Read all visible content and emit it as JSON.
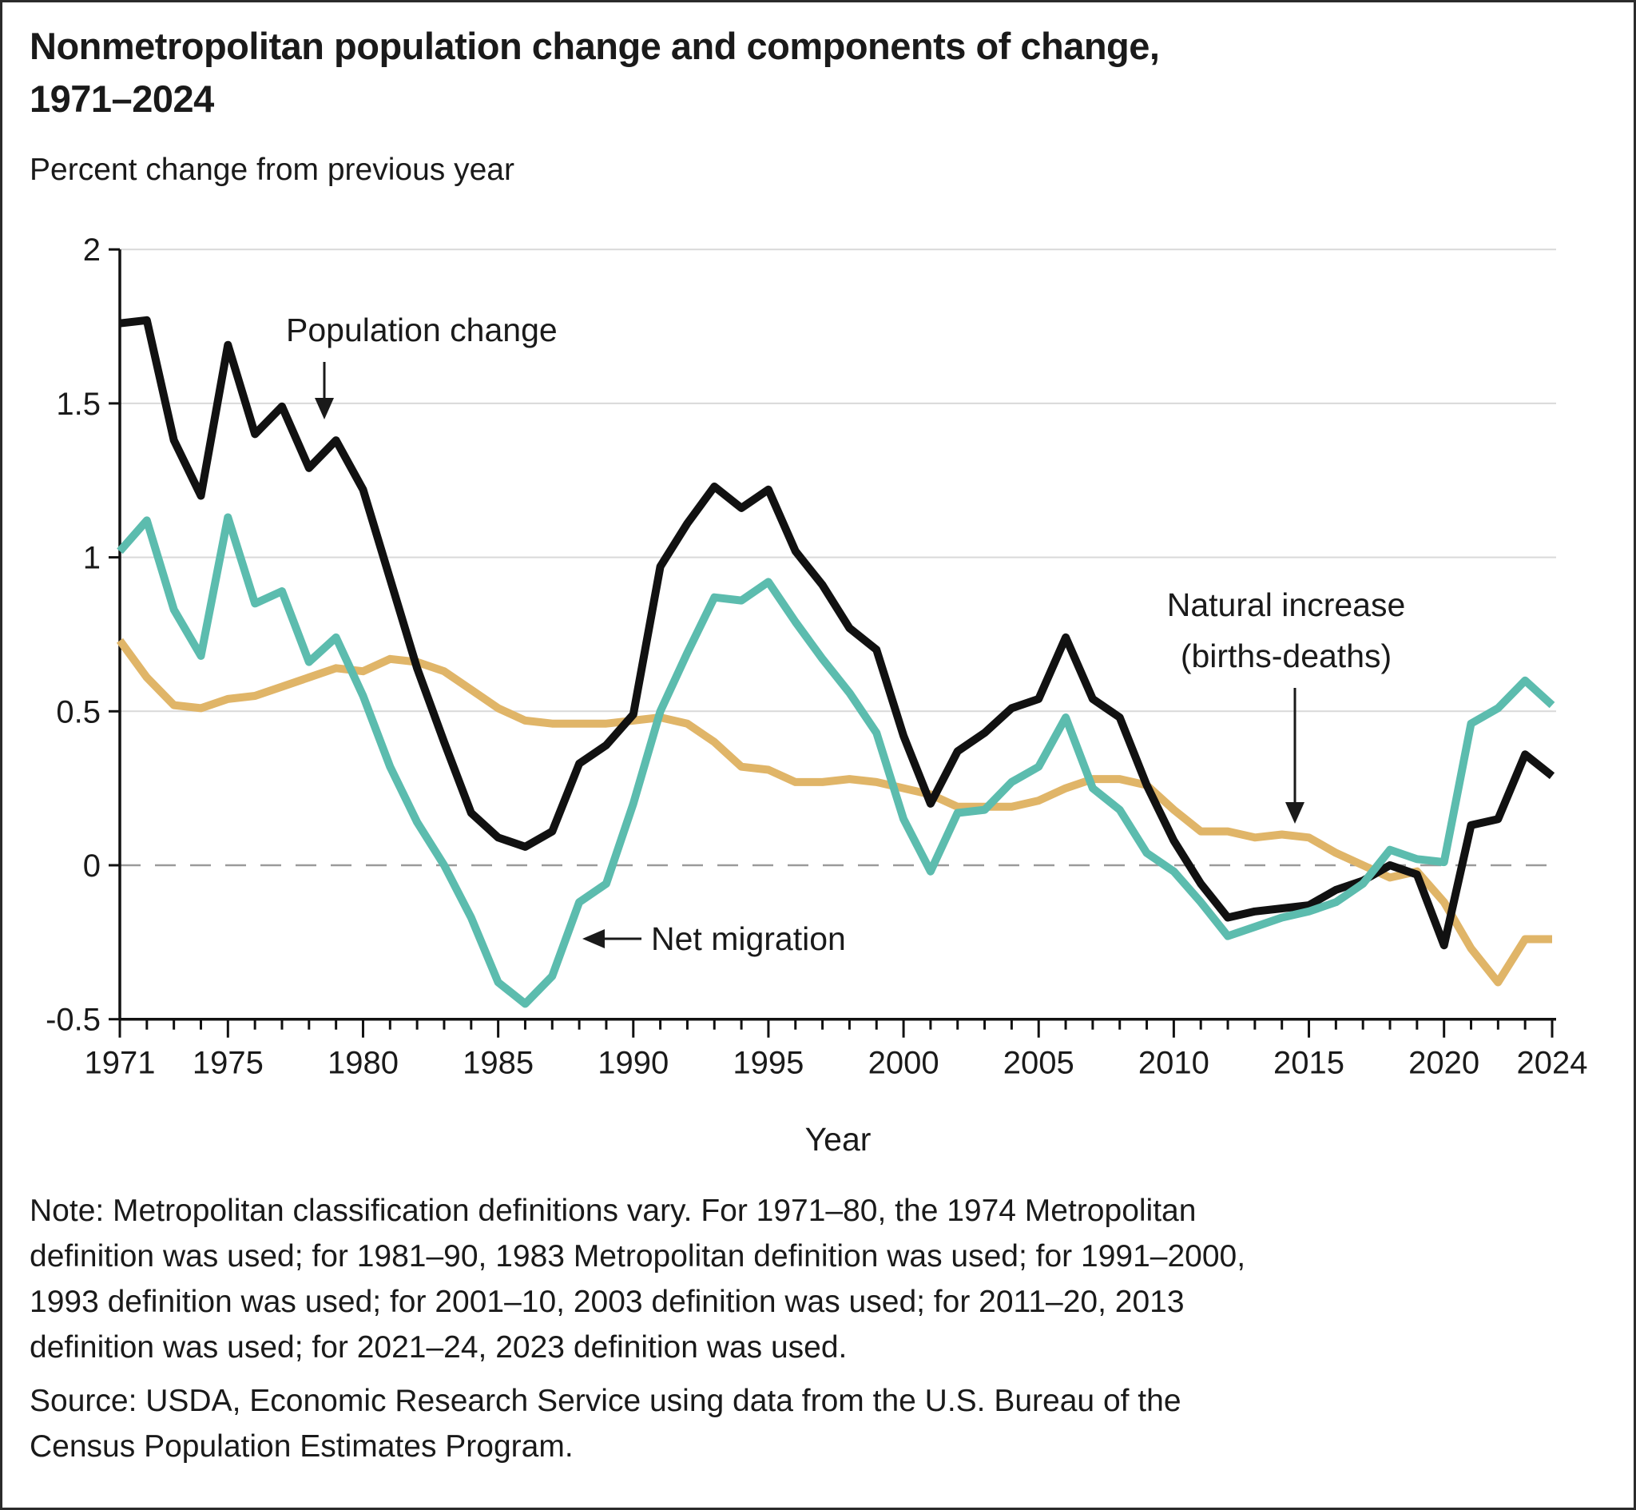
{
  "title_lines": [
    "Nonmetropolitan population change and components of change,",
    "1971–2024"
  ],
  "subtitle": "Percent change from previous year",
  "colors": {
    "population_change": "#111111",
    "net_migration": "#5cbcae",
    "natural_increase": "#e0b568",
    "grid": "#d9d9d9",
    "zero_line": "#9a9a9a",
    "axis": "#111111",
    "text": "#1a1a1a"
  },
  "chart_data": {
    "type": "line",
    "title": "Nonmetropolitan population change and components of change, 1971–2024",
    "xlabel": "Year",
    "ylabel": "Percent change from previous year",
    "xlim": [
      1971,
      2024
    ],
    "ylim": [
      -0.5,
      2
    ],
    "grid": true,
    "zero_line_dashed": true,
    "y_ticks": [
      2,
      1.5,
      1,
      0.5,
      0,
      -0.5
    ],
    "y_tick_labels": [
      "2",
      "1.5",
      "1",
      "0.5",
      "0",
      "-0.5"
    ],
    "x_tick_labels": [
      1971,
      1975,
      1980,
      1985,
      1990,
      1995,
      2000,
      2005,
      2010,
      2015,
      2020,
      2024
    ],
    "x": [
      1971,
      1972,
      1973,
      1974,
      1975,
      1976,
      1977,
      1978,
      1979,
      1980,
      1981,
      1982,
      1983,
      1984,
      1985,
      1986,
      1987,
      1988,
      1989,
      1990,
      1991,
      1992,
      1993,
      1994,
      1995,
      1996,
      1997,
      1998,
      1999,
      2000,
      2001,
      2002,
      2003,
      2004,
      2005,
      2006,
      2007,
      2008,
      2009,
      2010,
      2011,
      2012,
      2013,
      2014,
      2015,
      2016,
      2017,
      2018,
      2019,
      2020,
      2021,
      2022,
      2023,
      2024
    ],
    "series": [
      {
        "name": "Population change",
        "color": "#111111",
        "values": [
          1.76,
          1.77,
          1.38,
          1.2,
          1.69,
          1.4,
          1.49,
          1.29,
          1.38,
          1.22,
          0.93,
          0.64,
          0.4,
          0.17,
          0.09,
          0.06,
          0.11,
          0.33,
          0.39,
          0.49,
          0.97,
          1.11,
          1.23,
          1.16,
          1.22,
          1.02,
          0.91,
          0.77,
          0.7,
          0.42,
          0.2,
          0.37,
          0.43,
          0.51,
          0.54,
          0.74,
          0.54,
          0.48,
          0.26,
          0.08,
          -0.06,
          -0.17,
          -0.15,
          -0.14,
          -0.13,
          -0.08,
          -0.05,
          0.0,
          -0.03,
          -0.26,
          0.13,
          0.15,
          0.36,
          0.29
        ]
      },
      {
        "name": "Net migration",
        "color": "#5cbcae",
        "values": [
          1.02,
          1.12,
          0.83,
          0.68,
          1.13,
          0.85,
          0.89,
          0.66,
          0.74,
          0.55,
          0.32,
          0.14,
          0.0,
          -0.17,
          -0.38,
          -0.45,
          -0.36,
          -0.12,
          -0.06,
          0.2,
          0.5,
          0.69,
          0.87,
          0.86,
          0.92,
          0.79,
          0.67,
          0.56,
          0.43,
          0.15,
          -0.02,
          0.17,
          0.18,
          0.27,
          0.32,
          0.48,
          0.25,
          0.18,
          0.04,
          -0.02,
          -0.12,
          -0.23,
          -0.2,
          -0.17,
          -0.15,
          -0.12,
          -0.06,
          0.05,
          0.02,
          0.01,
          0.46,
          0.51,
          0.6,
          0.52
        ]
      },
      {
        "name": "Natural increase (births-deaths)",
        "color": "#e0b568",
        "values": [
          0.73,
          0.61,
          0.52,
          0.51,
          0.54,
          0.55,
          0.58,
          0.61,
          0.64,
          0.63,
          0.67,
          0.66,
          0.63,
          0.57,
          0.51,
          0.47,
          0.46,
          0.46,
          0.46,
          0.47,
          0.48,
          0.46,
          0.4,
          0.32,
          0.31,
          0.27,
          0.27,
          0.28,
          0.27,
          0.25,
          0.23,
          0.19,
          0.19,
          0.19,
          0.21,
          0.25,
          0.28,
          0.28,
          0.26,
          0.18,
          0.11,
          0.11,
          0.09,
          0.1,
          0.09,
          0.04,
          0.0,
          -0.04,
          -0.02,
          -0.12,
          -0.27,
          -0.38,
          -0.24,
          -0.24
        ]
      }
    ]
  },
  "annotations": {
    "population_change": {
      "label": "Population change"
    },
    "net_migration": {
      "label": "Net migration"
    },
    "natural_increase": {
      "line1": "Natural increase",
      "line2": "(births-deaths)"
    }
  },
  "note_lines": [
    "Note: Metropolitan classification definitions vary. For 1971–80, the 1974 Metropolitan",
    "definition was used; for 1981–90, 1983 Metropolitan definition was used; for 1991–2000,",
    "1993 definition was used; for 2001–10, 2003 definition was used; for 2011–20, 2013",
    "definition was used; for 2021–24, 2023 definition was used."
  ],
  "source_lines": [
    "Source: USDA, Economic Research Service using data from the U.S. Bureau of the",
    "Census Population Estimates Program."
  ]
}
